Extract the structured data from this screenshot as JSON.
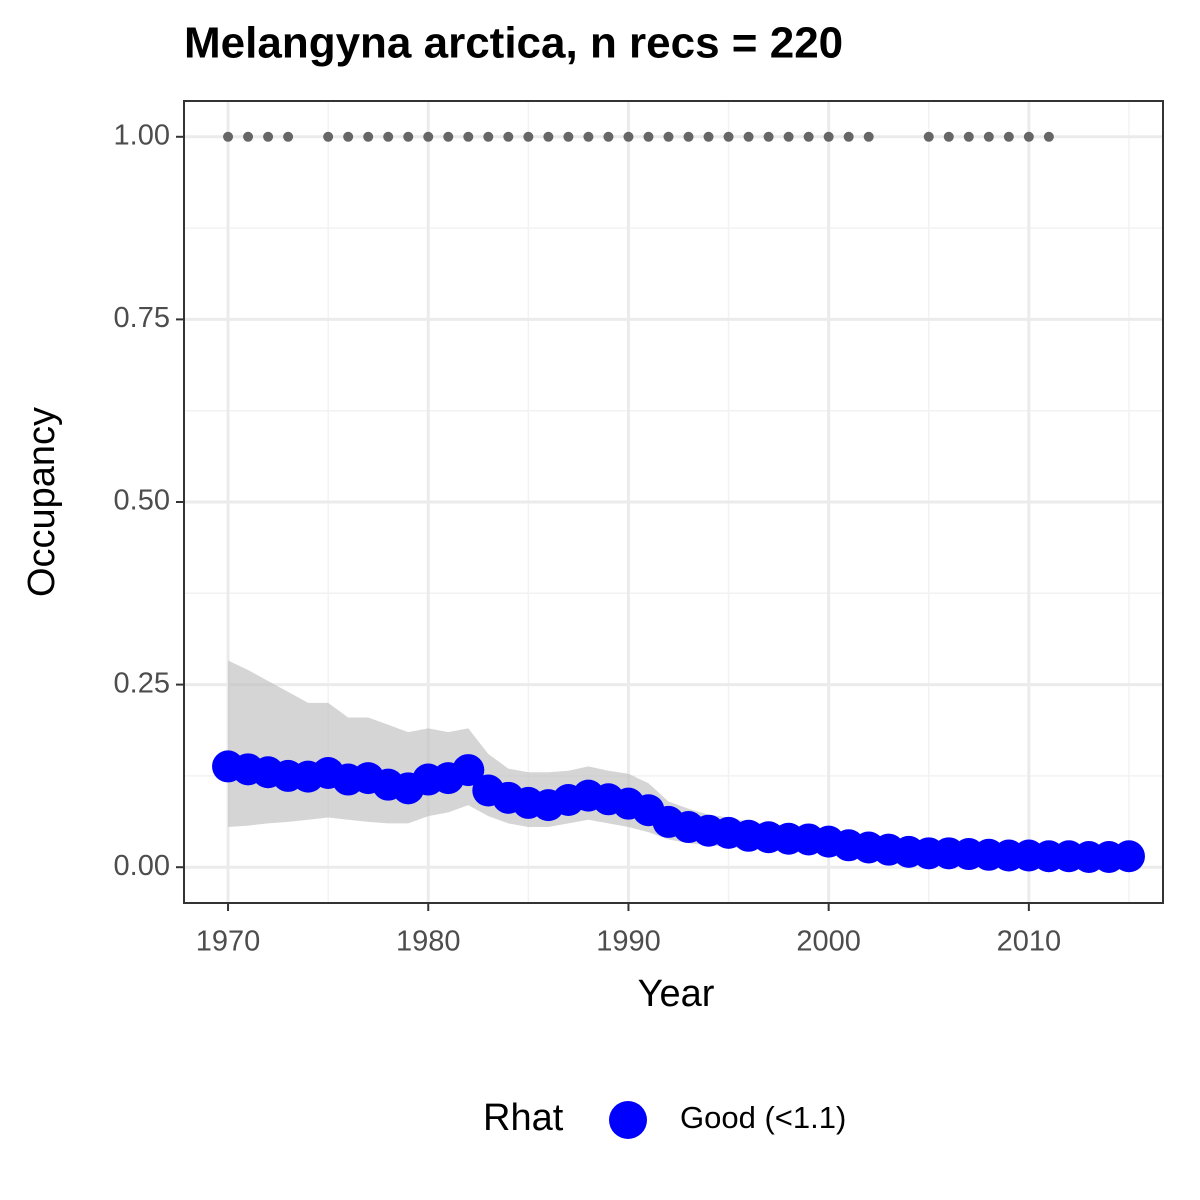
{
  "chart_data": {
    "type": "line",
    "title": "Melangyna arctica, n recs = 220",
    "xlabel": "Year",
    "ylabel": "Occupancy",
    "x": [
      1970,
      1971,
      1972,
      1973,
      1974,
      1975,
      1976,
      1977,
      1978,
      1979,
      1980,
      1981,
      1982,
      1983,
      1984,
      1985,
      1986,
      1987,
      1988,
      1989,
      1990,
      1991,
      1992,
      1993,
      1994,
      1995,
      1996,
      1997,
      1998,
      1999,
      2000,
      2001,
      2002,
      2003,
      2004,
      2005,
      2006,
      2007,
      2008,
      2009,
      2010,
      2011,
      2012,
      2013,
      2014,
      2015
    ],
    "series": [
      {
        "name": "Good (<1.1)",
        "color": "#0000ff",
        "ribbon_color": "#bebebe",
        "values": [
          0.138,
          0.134,
          0.13,
          0.125,
          0.124,
          0.129,
          0.12,
          0.122,
          0.113,
          0.108,
          0.12,
          0.122,
          0.133,
          0.105,
          0.095,
          0.088,
          0.085,
          0.092,
          0.098,
          0.093,
          0.087,
          0.078,
          0.062,
          0.055,
          0.05,
          0.047,
          0.043,
          0.041,
          0.039,
          0.038,
          0.035,
          0.03,
          0.027,
          0.024,
          0.021,
          0.019,
          0.019,
          0.018,
          0.017,
          0.016,
          0.016,
          0.015,
          0.015,
          0.014,
          0.014,
          0.015
        ],
        "upper": [
          0.283,
          0.27,
          0.255,
          0.24,
          0.225,
          0.225,
          0.205,
          0.205,
          0.195,
          0.185,
          0.19,
          0.185,
          0.19,
          0.155,
          0.135,
          0.13,
          0.13,
          0.132,
          0.138,
          0.132,
          0.128,
          0.115,
          0.09,
          0.08,
          0.072,
          0.068,
          0.062,
          0.06,
          0.057,
          0.055,
          0.052,
          0.046,
          0.042,
          0.037,
          0.034,
          0.031,
          0.03,
          0.029,
          0.028,
          0.027,
          0.027,
          0.026,
          0.026,
          0.025,
          0.025,
          0.026
        ],
        "lower": [
          0.055,
          0.057,
          0.06,
          0.062,
          0.065,
          0.068,
          0.065,
          0.062,
          0.06,
          0.06,
          0.07,
          0.075,
          0.085,
          0.07,
          0.06,
          0.055,
          0.055,
          0.06,
          0.065,
          0.06,
          0.055,
          0.048,
          0.038,
          0.033,
          0.03,
          0.028,
          0.025,
          0.024,
          0.022,
          0.021,
          0.019,
          0.016,
          0.014,
          0.012,
          0.01,
          0.009,
          0.009,
          0.008,
          0.007,
          0.007,
          0.007,
          0.006,
          0.006,
          0.006,
          0.006,
          0.006
        ]
      }
    ],
    "records": {
      "color": "#666666",
      "x": [
        1970,
        1971,
        1972,
        1973,
        1975,
        1976,
        1977,
        1978,
        1979,
        1980,
        1981,
        1982,
        1983,
        1984,
        1985,
        1986,
        1987,
        1988,
        1989,
        1990,
        1991,
        1992,
        1993,
        1994,
        1995,
        1996,
        1997,
        1998,
        1999,
        2000,
        2001,
        2002,
        2005,
        2006,
        2007,
        2008,
        2009,
        2010,
        2011
      ],
      "values": [
        1,
        1,
        1,
        1,
        1,
        1,
        1,
        1,
        1,
        1,
        1,
        1,
        1,
        1,
        1,
        1,
        1,
        1,
        1,
        1,
        1,
        1,
        1,
        1,
        1,
        1,
        1,
        1,
        1,
        1,
        1,
        1,
        1,
        1,
        1,
        1,
        1,
        1,
        1
      ]
    },
    "legend": {
      "title": "Rhat",
      "position": "bottom"
    },
    "xlim": [
      1967.8,
      2016.7
    ],
    "ylim": [
      -0.049,
      1.049
    ],
    "xticks": [
      1970,
      1980,
      1990,
      2000,
      2010
    ],
    "yticks": [
      {
        "value": 0,
        "label": "0.00"
      },
      {
        "value": 0.25,
        "label": "0.25"
      },
      {
        "value": 0.5,
        "label": "0.50"
      },
      {
        "value": 0.75,
        "label": "0.75"
      },
      {
        "value": 1,
        "label": "1.00"
      }
    ],
    "xminor": [
      1975,
      1985,
      1995,
      2005,
      2015
    ],
    "yminor": [
      0.125,
      0.375,
      0.625,
      0.875
    ],
    "grid": true
  }
}
